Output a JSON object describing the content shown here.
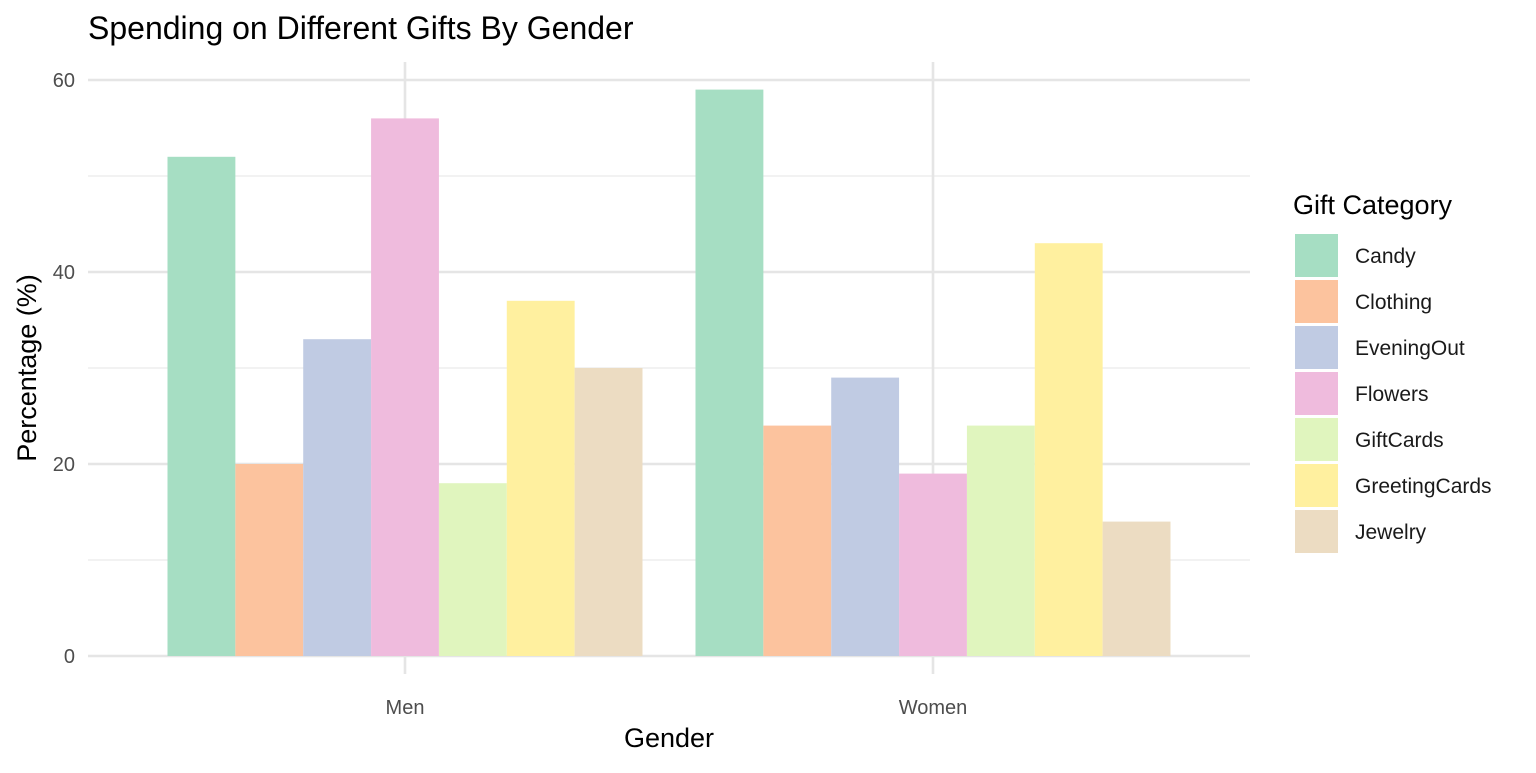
{
  "chart_data": {
    "type": "bar",
    "title": "Spending on Different Gifts By Gender",
    "xlabel": "Gender",
    "ylabel": "Percentage (%)",
    "categories": [
      "Men",
      "Women"
    ],
    "ylim": [
      0,
      62
    ],
    "yticks": [
      0,
      20,
      40,
      60
    ],
    "ytick_labels": [
      "0",
      "20",
      "40",
      "60"
    ],
    "grid": true,
    "legend_title": "Gift Category",
    "legend_position": "right",
    "series": [
      {
        "name": "Candy",
        "color": "#a6dec3",
        "values": [
          52,
          59
        ]
      },
      {
        "name": "Clothing",
        "color": "#fcc39e",
        "values": [
          20,
          24
        ]
      },
      {
        "name": "EveningOut",
        "color": "#c0cbe3",
        "values": [
          33,
          29
        ]
      },
      {
        "name": "Flowers",
        "color": "#efbbdd",
        "values": [
          56,
          19
        ]
      },
      {
        "name": "GiftCards",
        "color": "#e0f5be",
        "values": [
          18,
          24
        ]
      },
      {
        "name": "GreetingCards",
        "color": "#fff09f",
        "values": [
          37,
          43
        ]
      },
      {
        "name": "Jewelry",
        "color": "#ecdcc2",
        "values": [
          30,
          14
        ]
      }
    ]
  }
}
